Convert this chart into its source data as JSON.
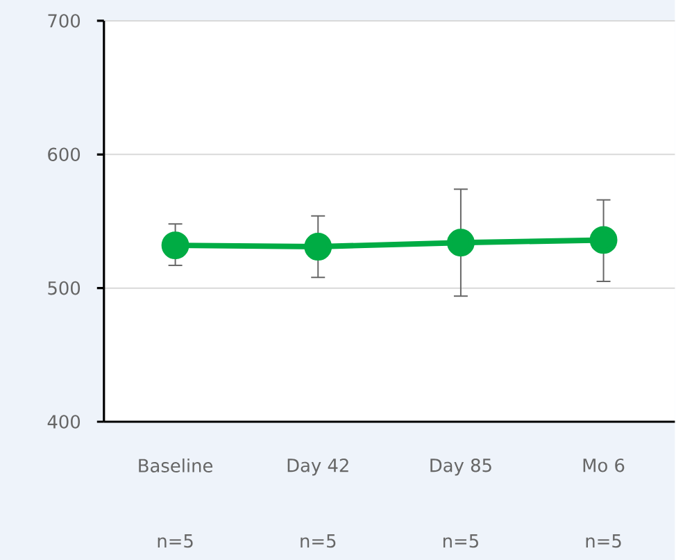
{
  "chart_data": {
    "type": "line",
    "categories": [
      "Baseline",
      "Day 42",
      "Day 85",
      "Mo 6"
    ],
    "series": [
      {
        "color": "#00ac44",
        "values": [
          532,
          531,
          534,
          536
        ],
        "errors": [
          [
            517,
            548
          ],
          [
            508,
            554
          ],
          [
            494,
            574
          ],
          [
            505,
            566
          ]
        ]
      }
    ],
    "ylim": [
      400,
      700
    ],
    "yticks": [
      400,
      500,
      600,
      700
    ],
    "grid": "y",
    "marker": "circle",
    "line_style": "solid",
    "annotations": [
      "n=5",
      "n=5",
      "n=5",
      "n=5"
    ]
  }
}
